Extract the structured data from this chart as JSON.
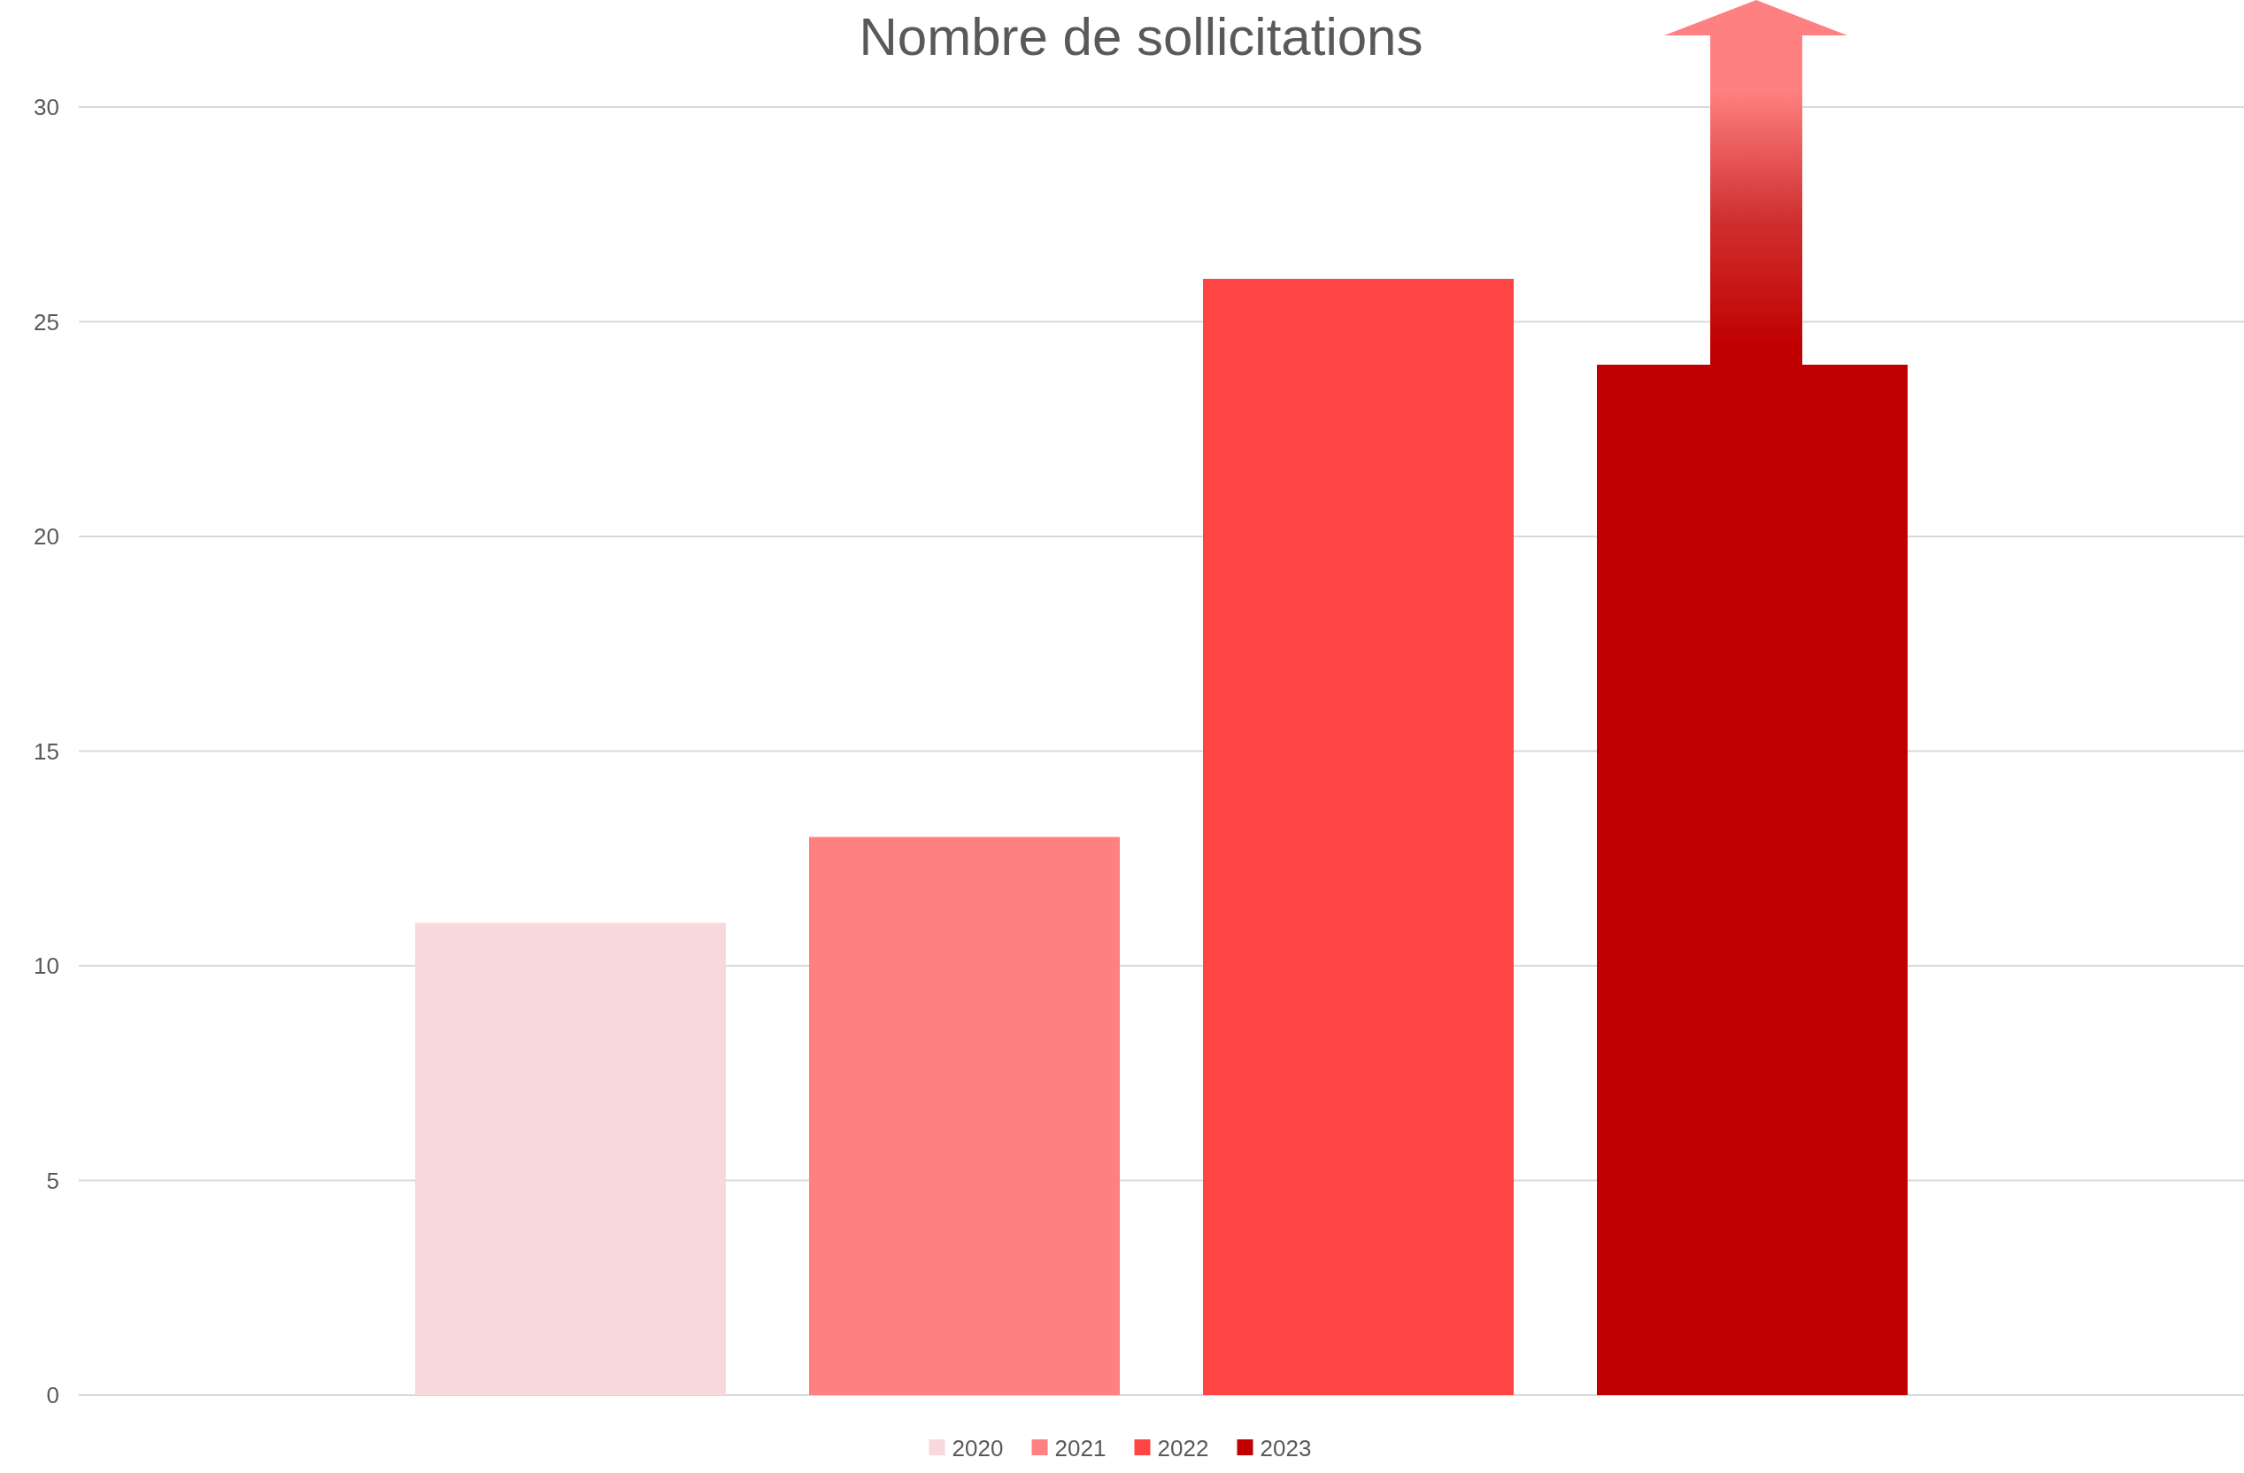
{
  "chart_data": {
    "type": "bar",
    "title": "Nombre de sollicitations",
    "categories": [
      null
    ],
    "series": [
      {
        "name": "2020",
        "color": "#f8d9db",
        "values": [
          11
        ]
      },
      {
        "name": "2021",
        "color": "#ff8080",
        "values": [
          13
        ]
      },
      {
        "name": "2022",
        "color": "#ff4444",
        "values": [
          26
        ]
      },
      {
        "name": "2023",
        "color": "#c00000",
        "values": [
          24
        ]
      }
    ],
    "ylim": [
      0,
      30
    ],
    "yticks": [
      0,
      5,
      10,
      15,
      20,
      25,
      30
    ],
    "grid": "y",
    "legend": "bottom"
  }
}
